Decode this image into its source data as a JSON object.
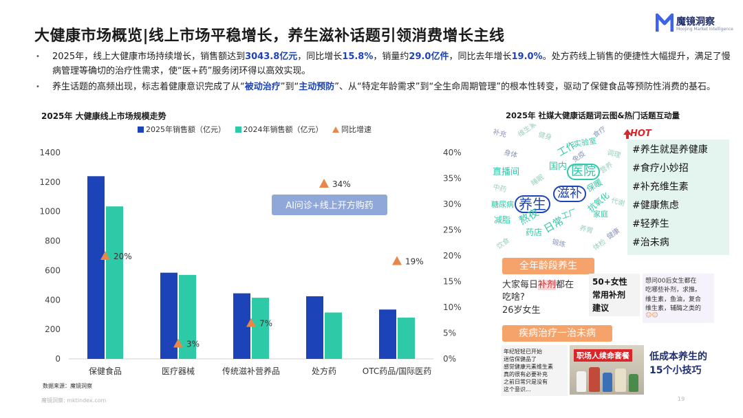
{
  "header": {
    "title": "大健康市场概览|线上市场平稳增长，养生滋补话题引领消费增长主线",
    "logo_name": "魔镜洞察",
    "logo_sub": "Moojing Market Intelligence"
  },
  "bullets": [
    {
      "parts": [
        {
          "text": "2025年，线上大健康市场持续增长，销售额达到",
          "hl": false
        },
        {
          "text": "3043.8亿元",
          "hl": true
        },
        {
          "text": "，同比增长",
          "hl": false
        },
        {
          "text": "15.8%",
          "hl": true
        },
        {
          "text": "，销量约",
          "hl": false
        },
        {
          "text": "29.0亿件",
          "hl": true
        },
        {
          "text": "，同比去年增长",
          "hl": false
        },
        {
          "text": "19.0%",
          "hl": true
        },
        {
          "text": "。处方药线上销售的便捷性大幅提升，满足了慢病管理等确切的治疗性需求，使“医+药”服务闭环得以高效实现。",
          "hl": false
        }
      ]
    },
    {
      "parts": [
        {
          "text": "养生话题的高频出现，标志着健康意识完成了从“",
          "hl": false
        },
        {
          "text": "被动治疗",
          "hl": true
        },
        {
          "text": "”到“",
          "hl": false
        },
        {
          "text": "主动预防",
          "hl": true
        },
        {
          "text": "”、从“特定年龄需求”到“全生命周期管理”的根本性转变，驱动了保健食品等预防性消费的基石。",
          "hl": false
        }
      ]
    }
  ],
  "chart_data": {
    "type": "bar",
    "title": "2025年 大健康线上市场规模走势",
    "categories": [
      "保健食品",
      "医疗器械",
      "传统滋补营养品",
      "处方药",
      "OTC药品/国际医药"
    ],
    "series": [
      {
        "name": "2025年销售额（亿元）",
        "values": [
          1240,
          585,
          445,
          425,
          335
        ],
        "color": "#1c44b8"
      },
      {
        "name": "2024年销售额（亿元）",
        "values": [
          1035,
          570,
          415,
          315,
          280
        ],
        "color": "#2ec9a6"
      }
    ],
    "growth": {
      "name": "同比增速",
      "values": [
        20,
        3,
        7,
        34,
        19
      ],
      "labels": [
        "20%",
        "3%",
        "7%",
        "34%",
        "19%"
      ],
      "color": "#e8874b"
    },
    "ylim": [
      0,
      1400
    ],
    "yticks": [
      "0",
      "200",
      "400",
      "600",
      "800",
      "1000",
      "1200",
      "1400"
    ],
    "y2lim": [
      0,
      40
    ],
    "y2ticks": [
      "0%",
      "5%",
      "10%",
      "15%",
      "20%",
      "25%",
      "30%",
      "35%",
      "40%"
    ],
    "annotation": "AI问诊+线上开方购药",
    "grid": false,
    "legend_position": "top"
  },
  "source": "数据来源：魔镜洞察",
  "footer": "魔镜洞察: mktindex.com",
  "page_number": "19",
  "right_panel": {
    "title": "2025年 社媒大健康话题词云图&热门话题互动量",
    "hot_label": "HOT",
    "topics": [
      "#养生就是养健康",
      "#食疗小妙招",
      "#补充维生素",
      "#健康焦虑",
      "#轻养生",
      "#治未病"
    ],
    "cloud_words": [
      {
        "text": "养生",
        "color": "#1c44b8",
        "size": 20
      },
      {
        "text": "滋补",
        "color": "#1c44b8",
        "size": 18
      },
      {
        "text": "医院",
        "color": "#2ec9a6",
        "size": 18
      },
      {
        "text": "熬夜",
        "color": "#2ec9a6",
        "size": 15
      },
      {
        "text": "日常",
        "color": "#2ec9a6",
        "size": 15
      },
      {
        "text": "工作",
        "color": "#2ec9a6",
        "size": 14
      },
      {
        "text": "国内",
        "color": "#2ec9a6",
        "size": 13
      },
      {
        "text": "直播间",
        "color": "#2ec9a6",
        "size": 13
      },
      {
        "text": "减脂",
        "color": "#2ec9a6",
        "size": 12
      },
      {
        "text": "抗氧化",
        "color": "#2ec9a6",
        "size": 12
      },
      {
        "text": "药店",
        "color": "#2ec9a6",
        "size": 12
      },
      {
        "text": "保暖",
        "color": "#2ec9a6",
        "size": 12
      },
      {
        "text": "糖尿病",
        "color": "#2ec9a6",
        "size": 11
      },
      {
        "text": "家庭",
        "color": "#2ec9a6",
        "size": 11
      },
      {
        "text": "实验室",
        "color": "#2ec9a6",
        "size": 11
      },
      {
        "text": "工厂",
        "color": "#2ec9a6",
        "size": 11
      }
    ],
    "banner_1": "全年龄段养生",
    "card_1": {
      "line1": "大家每日",
      "keyword": "补剂",
      "line1_end": "都在",
      "line2": "吃啥?",
      "line3": "26岁女生"
    },
    "card_2": {
      "line1": "50+女性",
      "line2": "常用补剂",
      "line3": "建议"
    },
    "card_3": {
      "line1": "想问00后女生都在",
      "line2": "吃哪些补剂，求推。",
      "line3": "维生素，鱼油，复合",
      "line4": "维生素，辅酶之类的"
    },
    "banner_2": "疾病治疗一治未病",
    "card_4": {
      "line1": "年纪轻轻已开始",
      "line2": "迷信保健品了",
      "line3": "感觉健康元素维生素",
      "line4": "真的很有必要补充",
      "line5": "之前日常只是没有",
      "line6": "这个意识..."
    },
    "photo_caption": "职场人续命套餐",
    "card_5": {
      "line1": "低成本养生的",
      "line2": "15个小技巧"
    }
  }
}
